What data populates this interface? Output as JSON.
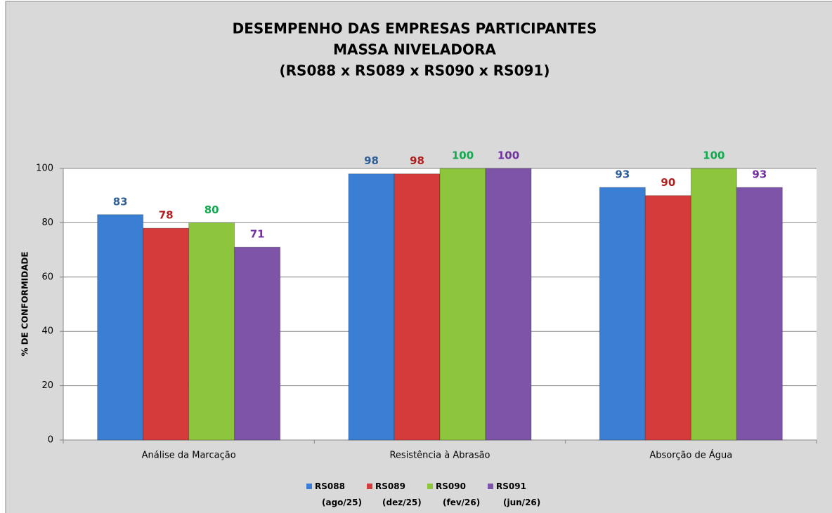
{
  "chart_data": {
    "type": "bar",
    "title": [
      "DESEMPENHO DAS EMPRESAS PARTICIPANTES",
      "MASSA NIVELADORA",
      "(RS088 x RS089 x RS090 x RS091)"
    ],
    "y_label": "% DE CONFORMIDADE",
    "categories": [
      "Análise da Marcação",
      "Resistência à Abrasão",
      "Absorção de Água"
    ],
    "series": [
      {
        "name": "RS088 (ago/25)",
        "color": "#3b7fd4",
        "label_color": "#2f5f98",
        "values": [
          83,
          98,
          93
        ]
      },
      {
        "name": "RS089 (dez/25)",
        "color": "#d63b3b",
        "label_color": "#b01e1e",
        "values": [
          78,
          98,
          90
        ]
      },
      {
        "name": "RS090 (fev/26)",
        "color": "#8dc63c",
        "label_color": "#12a84e",
        "values": [
          80,
          100,
          100
        ]
      },
      {
        "name": "RS091 (jun/26)",
        "color": "#7d54a8",
        "label_color": "#7030a0",
        "values": [
          71,
          100,
          93
        ]
      }
    ],
    "ylim": [
      0,
      100
    ],
    "yticks": [
      0,
      20,
      40,
      60,
      80,
      100
    ],
    "grid": true,
    "legend": "bottom"
  }
}
